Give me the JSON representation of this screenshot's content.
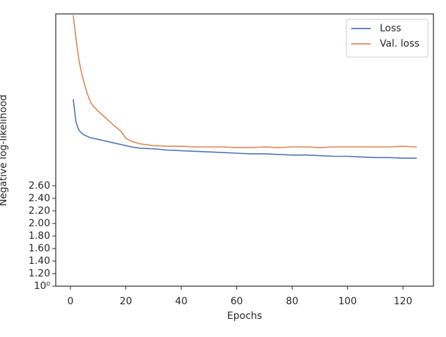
{
  "chart_data": {
    "type": "line",
    "xlabel": "Epochs",
    "ylabel": "Negative log-likelihood",
    "x": [
      1,
      2,
      3,
      4,
      5,
      6,
      7,
      8,
      10,
      12,
      14,
      16,
      18,
      20,
      22,
      25,
      30,
      35,
      40,
      45,
      50,
      55,
      60,
      65,
      70,
      75,
      80,
      85,
      90,
      95,
      100,
      105,
      110,
      115,
      120,
      125
    ],
    "series": [
      {
        "name": "Loss",
        "color": "#4c72b0",
        "values": [
          3.98,
          3.62,
          3.49,
          3.44,
          3.41,
          3.39,
          3.37,
          3.36,
          3.34,
          3.32,
          3.3,
          3.28,
          3.26,
          3.24,
          3.22,
          3.2,
          3.19,
          3.17,
          3.16,
          3.15,
          3.14,
          3.13,
          3.12,
          3.11,
          3.11,
          3.1,
          3.09,
          3.09,
          3.08,
          3.07,
          3.07,
          3.06,
          3.05,
          3.05,
          3.04,
          3.04
        ]
      },
      {
        "name": "Val. loss",
        "color": "#dd8452",
        "values": [
          5.32,
          4.95,
          4.62,
          4.4,
          4.23,
          4.08,
          3.96,
          3.88,
          3.79,
          3.71,
          3.63,
          3.55,
          3.48,
          3.36,
          3.31,
          3.27,
          3.24,
          3.23,
          3.23,
          3.22,
          3.22,
          3.22,
          3.21,
          3.21,
          3.22,
          3.21,
          3.22,
          3.22,
          3.21,
          3.22,
          3.22,
          3.22,
          3.22,
          3.22,
          3.23,
          3.22
        ]
      }
    ],
    "xlim": [
      -5.3,
      131
    ],
    "xticks": [
      0,
      20,
      40,
      60,
      80,
      100,
      120
    ],
    "ylim": [
      1,
      5.34
    ],
    "yticks": [
      {
        "value": 1,
        "label": "10⁰"
      },
      {
        "value": 1.2,
        "label": "1.20"
      },
      {
        "value": 1.4,
        "label": "1.40"
      },
      {
        "value": 1.6,
        "label": "1.60"
      },
      {
        "value": 1.8,
        "label": "1.80"
      },
      {
        "value": 2.0,
        "label": "2.00"
      },
      {
        "value": 2.2,
        "label": "2.20"
      },
      {
        "value": 2.4,
        "label": "2.40"
      },
      {
        "value": 2.6,
        "label": "2.60"
      }
    ],
    "legend": "upper right"
  }
}
